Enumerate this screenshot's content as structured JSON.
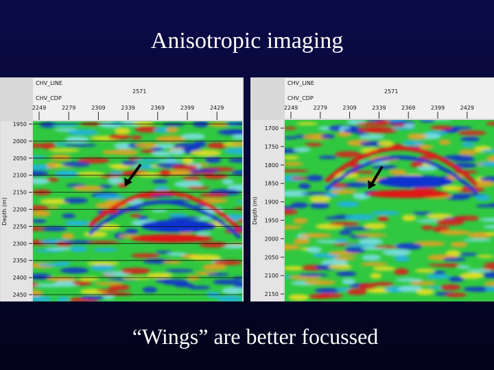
{
  "title": "Anisotropic imaging",
  "caption": "“Wings” are better focussed",
  "panels": [
    {
      "line_label": "CHV_LINE",
      "line_value": "2571",
      "cdp_label": "CHV_CDP",
      "cdp_ticks": [
        "2249",
        "2279",
        "2309",
        "2339",
        "2369",
        "2399",
        "2429"
      ],
      "depth_label": "Depth (m)",
      "depth_ticks": [
        "1950",
        "2000",
        "2050",
        "2100",
        "2150",
        "2200",
        "2250",
        "2300",
        "2350",
        "2400",
        "2450"
      ]
    },
    {
      "line_label": "CHV_LINE",
      "line_value": "2571",
      "cdp_label": "CHV_CDP",
      "cdp_ticks": [
        "2249",
        "2279",
        "2309",
        "2339",
        "2369",
        "2399",
        "2429"
      ],
      "depth_label": "Depth (m)",
      "depth_ticks": [
        "1700",
        "1750",
        "1800",
        "1850",
        "1900",
        "1950",
        "2000",
        "2050",
        "2100",
        "2150"
      ]
    }
  ]
}
